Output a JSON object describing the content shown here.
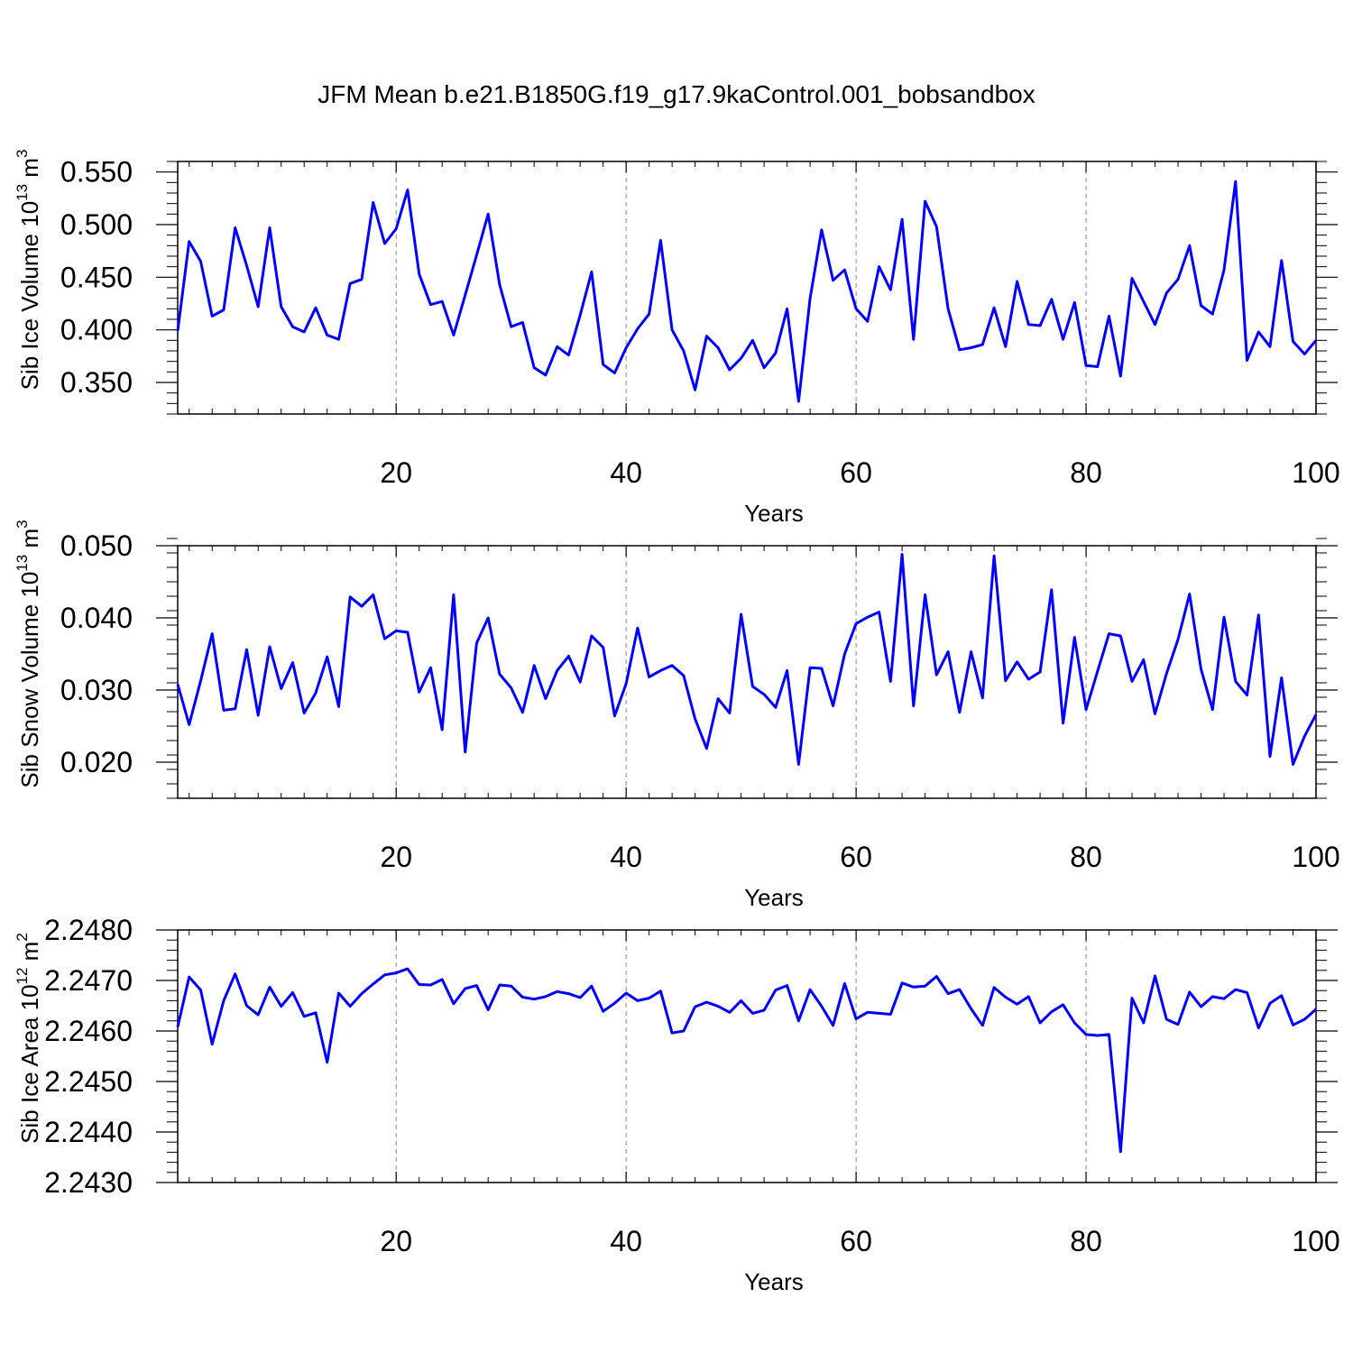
{
  "figure_title": "JFM Mean b.e21.B1850G.f19_g17.9kaControl.001_bobsandbox",
  "colors": {
    "line": "#0000ff",
    "axis": "#000000",
    "grid": "#888888"
  },
  "chart_data": [
    {
      "type": "line",
      "title": "JFM Mean b.e21.B1850G.f19_g17.9kaControl.001_bobsandbox",
      "xlabel": "Years",
      "ylabel": {
        "text": "Sib Ice Volume 10",
        "exp": "13",
        "unit": " m",
        "unit_exp": "3"
      },
      "xlim": [
        1,
        100
      ],
      "ylim": [
        0.32,
        0.56
      ],
      "x_ticks": [
        20,
        40,
        60,
        80,
        100
      ],
      "x_tick_labels": [
        "20",
        "40",
        "60",
        "80",
        "100"
      ],
      "y_ticks": [
        0.35,
        0.4,
        0.45,
        0.5,
        0.55
      ],
      "y_tick_labels": [
        "0.350",
        "0.400",
        "0.450",
        "0.500",
        "0.550"
      ],
      "y_minor_step": 0.01,
      "grid": "vertical dashed at major x ticks",
      "series": [
        {
          "name": "Sib Ice Volume",
          "x_start": 1,
          "values": [
            0.399,
            0.484,
            0.465,
            0.413,
            0.419,
            0.497,
            0.461,
            0.422,
            0.497,
            0.422,
            0.403,
            0.398,
            0.421,
            0.395,
            0.391,
            0.444,
            0.448,
            0.521,
            0.482,
            0.496,
            0.533,
            0.453,
            0.424,
            0.427,
            0.395,
            0.433,
            0.471,
            0.51,
            0.443,
            0.403,
            0.407,
            0.364,
            0.357,
            0.384,
            0.376,
            0.414,
            0.455,
            0.367,
            0.359,
            0.383,
            0.401,
            0.415,
            0.485,
            0.4,
            0.38,
            0.343,
            0.394,
            0.383,
            0.362,
            0.373,
            0.39,
            0.364,
            0.378,
            0.42,
            0.332,
            0.43,
            0.495,
            0.447,
            0.457,
            0.42,
            0.408,
            0.46,
            0.438,
            0.505,
            0.391,
            0.522,
            0.498,
            0.42,
            0.381,
            0.383,
            0.386,
            0.421,
            0.384,
            0.446,
            0.405,
            0.404,
            0.429,
            0.391,
            0.426,
            0.366,
            0.365,
            0.413,
            0.356,
            0.449,
            0.427,
            0.405,
            0.435,
            0.448,
            0.48,
            0.423,
            0.415,
            0.457,
            0.541,
            0.371,
            0.398,
            0.384,
            0.466,
            0.389,
            0.377,
            0.39
          ]
        }
      ]
    },
    {
      "type": "line",
      "xlabel": "Years",
      "ylabel": {
        "text": "Sib Snow Volume 10",
        "exp": "13",
        "unit": " m",
        "unit_exp": "3"
      },
      "xlim": [
        1,
        100
      ],
      "ylim": [
        0.015,
        0.05
      ],
      "x_ticks": [
        20,
        40,
        60,
        80,
        100
      ],
      "x_tick_labels": [
        "20",
        "40",
        "60",
        "80",
        "100"
      ],
      "y_ticks": [
        0.02,
        0.03,
        0.04,
        0.05
      ],
      "y_tick_labels": [
        "0.020",
        "0.030",
        "0.040",
        "0.050"
      ],
      "y_minor_step": 0.002,
      "grid": "vertical dashed at major x ticks",
      "series": [
        {
          "name": "Sib Snow Volume",
          "x_start": 1,
          "values": [
            0.0308,
            0.0252,
            0.0313,
            0.0378,
            0.0272,
            0.0274,
            0.0356,
            0.0265,
            0.036,
            0.0302,
            0.0338,
            0.0268,
            0.0296,
            0.0346,
            0.0277,
            0.0429,
            0.0416,
            0.0432,
            0.0371,
            0.0382,
            0.038,
            0.0297,
            0.0331,
            0.0245,
            0.0432,
            0.0214,
            0.0365,
            0.04,
            0.0322,
            0.0303,
            0.0269,
            0.0334,
            0.0288,
            0.0327,
            0.0347,
            0.0311,
            0.0375,
            0.0359,
            0.0264,
            0.0309,
            0.0386,
            0.0318,
            0.0327,
            0.0334,
            0.032,
            0.026,
            0.0219,
            0.0288,
            0.0268,
            0.0405,
            0.0305,
            0.0294,
            0.0276,
            0.0327,
            0.0197,
            0.0331,
            0.033,
            0.0278,
            0.035,
            0.0392,
            0.0401,
            0.0408,
            0.0312,
            0.0488,
            0.0278,
            0.0432,
            0.0321,
            0.0353,
            0.0269,
            0.0353,
            0.0289,
            0.0486,
            0.0313,
            0.0339,
            0.0315,
            0.0325,
            0.0439,
            0.0254,
            0.0373,
            0.0273,
            0.0326,
            0.0378,
            0.0375,
            0.0312,
            0.0342,
            0.0267,
            0.0323,
            0.037,
            0.0433,
            0.0329,
            0.0273,
            0.0401,
            0.0312,
            0.0293,
            0.0404,
            0.0208,
            0.0317,
            0.0197,
            0.0236,
            0.0266
          ]
        }
      ]
    },
    {
      "type": "line",
      "xlabel": "Years",
      "ylabel": {
        "text": "Sib Ice Area 10",
        "exp": "12",
        "unit": " m",
        "unit_exp": "2"
      },
      "xlim": [
        1,
        100
      ],
      "ylim": [
        2.243,
        2.248
      ],
      "x_ticks": [
        20,
        40,
        60,
        80,
        100
      ],
      "x_tick_labels": [
        "20",
        "40",
        "60",
        "80",
        "100"
      ],
      "y_ticks": [
        2.243,
        2.244,
        2.245,
        2.246,
        2.247,
        2.248
      ],
      "y_tick_labels": [
        "2.2430",
        "2.2440",
        "2.2450",
        "2.2460",
        "2.2470",
        "2.2480"
      ],
      "y_minor_step": 0.0002,
      "grid": "vertical dashed at major x ticks",
      "series": [
        {
          "name": "Sib Ice Area",
          "x_start": 1,
          "values": [
            2.24608,
            2.24707,
            2.24681,
            2.24574,
            2.2466,
            2.24713,
            2.2465,
            2.24632,
            2.24687,
            2.24649,
            2.24676,
            2.24629,
            2.24636,
            2.24538,
            2.24675,
            2.24649,
            2.24674,
            2.24693,
            2.24711,
            2.24715,
            2.24723,
            2.24692,
            2.24691,
            2.24702,
            2.24654,
            2.24684,
            2.2469,
            2.24642,
            2.24691,
            2.24689,
            2.24667,
            2.24663,
            2.24668,
            2.24678,
            2.24674,
            2.24666,
            2.24689,
            2.24639,
            2.24655,
            2.24675,
            2.2466,
            2.24665,
            2.24679,
            2.24596,
            2.246,
            2.24648,
            2.24657,
            2.24649,
            2.24637,
            2.2466,
            2.24635,
            2.24641,
            2.24681,
            2.2469,
            2.2462,
            2.24682,
            2.24649,
            2.24611,
            2.24694,
            2.24624,
            2.24637,
            2.24635,
            2.24633,
            2.24695,
            2.24687,
            2.24689,
            2.24708,
            2.24674,
            2.24682,
            2.24644,
            2.24611,
            2.24686,
            2.24667,
            2.24653,
            2.24668,
            2.24616,
            2.24638,
            2.24652,
            2.24616,
            2.24593,
            2.24591,
            2.24593,
            2.24361,
            2.24665,
            2.24616,
            2.24709,
            2.24623,
            2.24613,
            2.24677,
            2.24648,
            2.24668,
            2.24664,
            2.24682,
            2.24676,
            2.24606,
            2.24655,
            2.2467,
            2.24612,
            2.24623,
            2.24643
          ]
        }
      ]
    }
  ]
}
